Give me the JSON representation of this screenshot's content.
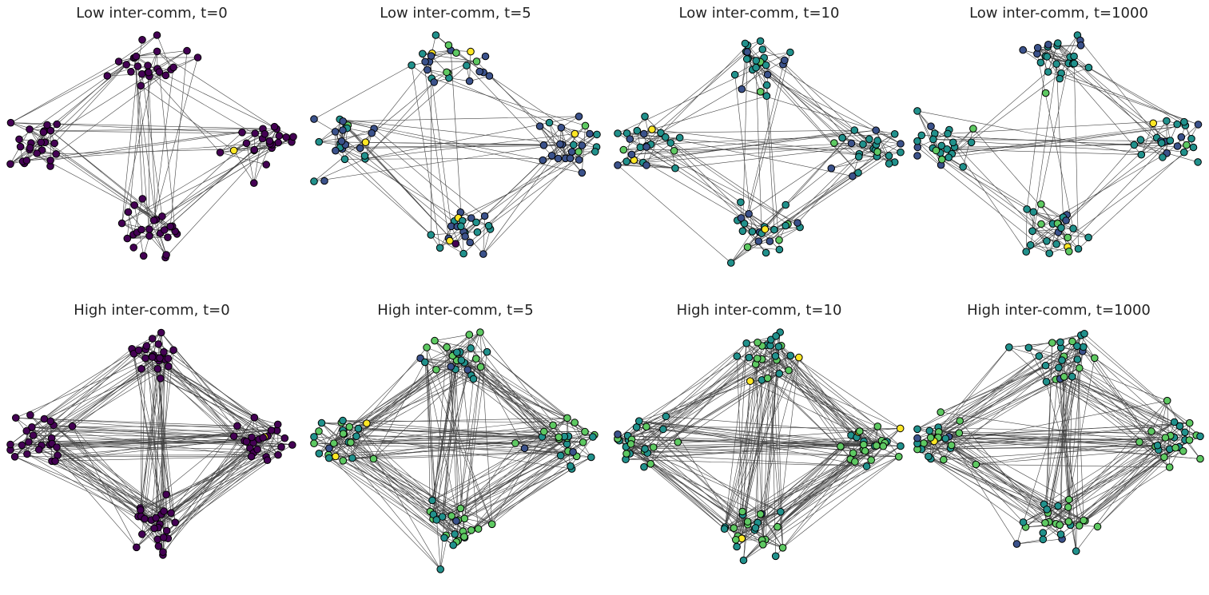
{
  "figure": {
    "panels": [
      {
        "title": "Low inter-comm, t=0",
        "row": 0,
        "col": 0
      },
      {
        "title": "Low inter-comm, t=5",
        "row": 0,
        "col": 1
      },
      {
        "title": "Low inter-comm, t=10",
        "row": 0,
        "col": 2
      },
      {
        "title": "Low inter-comm, t=1000",
        "row": 0,
        "col": 3
      },
      {
        "title": "High inter-comm, t=0",
        "row": 1,
        "col": 0
      },
      {
        "title": "High inter-comm, t=5",
        "row": 1,
        "col": 1
      },
      {
        "title": "High inter-comm, t=10",
        "row": 1,
        "col": 2
      },
      {
        "title": "High inter-comm, t=1000",
        "row": 1,
        "col": 3
      }
    ],
    "edge_color": "#444444",
    "node_outline_color": "#000000",
    "node_palette": [
      "#440154",
      "#3b528b",
      "#21918c",
      "#5ec962",
      "#fde725"
    ]
  }
}
